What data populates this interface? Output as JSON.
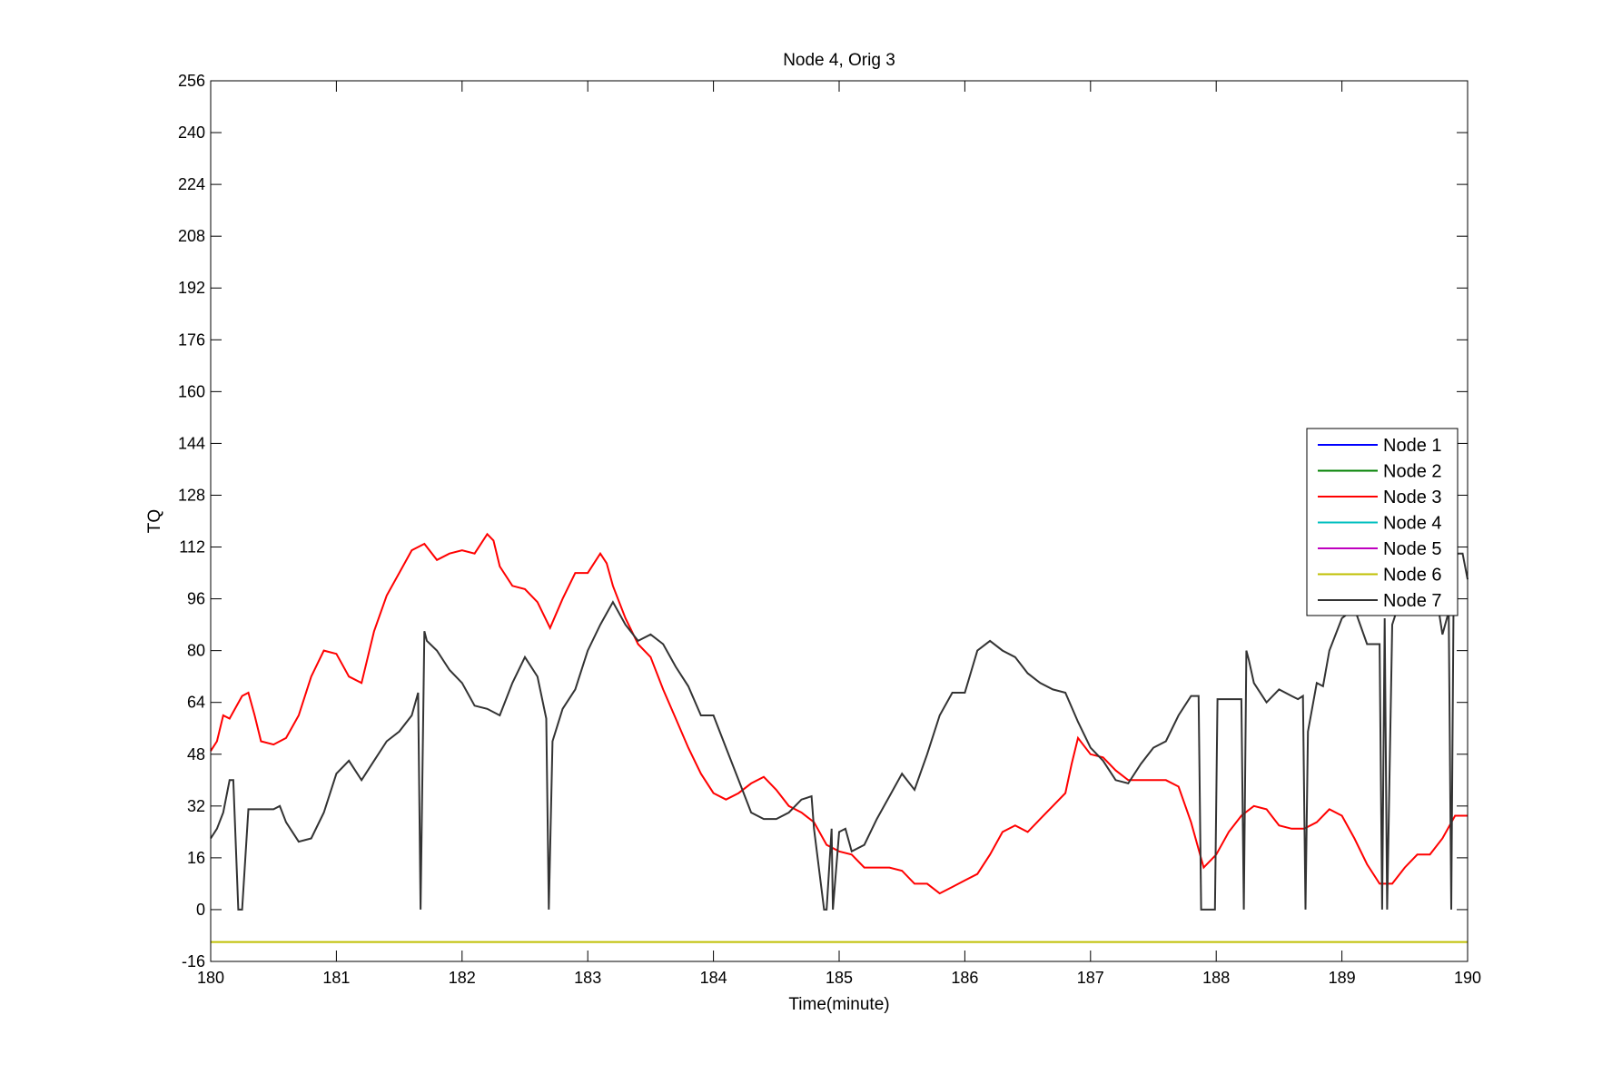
{
  "chart_data": {
    "type": "line",
    "title": "Node 4, Orig 3",
    "xlabel": "Time(minute)",
    "ylabel": "TQ",
    "xlim": [
      180,
      190
    ],
    "ylim": [
      -16,
      256
    ],
    "xticks": [
      180,
      181,
      182,
      183,
      184,
      185,
      186,
      187,
      188,
      189,
      190
    ],
    "yticks": [
      -16,
      0,
      16,
      32,
      48,
      64,
      80,
      96,
      112,
      128,
      144,
      160,
      176,
      192,
      208,
      224,
      240,
      256
    ],
    "grid": false,
    "legend_position": "right, vertically centered",
    "series": [
      {
        "name": "Node  1",
        "color": "#0000ff",
        "x": [],
        "y": []
      },
      {
        "name": "Node  2",
        "color": "#008000",
        "x": [],
        "y": []
      },
      {
        "name": "Node  3",
        "color": "#ff0000",
        "x": [
          180.0,
          180.05,
          180.1,
          180.15,
          180.25,
          180.3,
          180.35,
          180.4,
          180.5,
          180.6,
          180.7,
          180.8,
          180.9,
          181.0,
          181.1,
          181.2,
          181.3,
          181.4,
          181.5,
          181.6,
          181.7,
          181.8,
          181.9,
          182.0,
          182.1,
          182.2,
          182.25,
          182.3,
          182.4,
          182.5,
          182.6,
          182.7,
          182.8,
          182.9,
          183.0,
          183.1,
          183.15,
          183.2,
          183.3,
          183.4,
          183.5,
          183.6,
          183.7,
          183.8,
          183.9,
          184.0,
          184.1,
          184.2,
          184.3,
          184.4,
          184.5,
          184.6,
          184.7,
          184.8,
          184.9,
          185.0,
          185.1,
          185.2,
          185.3,
          185.4,
          185.5,
          185.6,
          185.7,
          185.8,
          185.9,
          186.0,
          186.1,
          186.2,
          186.3,
          186.4,
          186.5,
          186.6,
          186.7,
          186.8,
          186.85,
          186.9,
          187.0,
          187.1,
          187.2,
          187.3,
          187.4,
          187.5,
          187.6,
          187.7,
          187.8,
          187.9,
          188.0,
          188.1,
          188.2,
          188.3,
          188.4,
          188.5,
          188.6,
          188.7,
          188.8,
          188.9,
          189.0,
          189.1,
          189.2,
          189.3,
          189.4,
          189.5,
          189.6,
          189.7,
          189.8,
          189.9,
          190.0
        ],
        "y": [
          49,
          52,
          60,
          59,
          66,
          67,
          60,
          52,
          51,
          53,
          60,
          72,
          80,
          79,
          72,
          70,
          86,
          97,
          104,
          111,
          113,
          108,
          110,
          111,
          110,
          116,
          114,
          106,
          100,
          99,
          95,
          87,
          96,
          104,
          104,
          110,
          107,
          100,
          90,
          82,
          78,
          68,
          59,
          50,
          42,
          36,
          34,
          36,
          39,
          41,
          37,
          32,
          30,
          27,
          20,
          18,
          17,
          13,
          13,
          13,
          12,
          8,
          8,
          5,
          7,
          9,
          11,
          17,
          24,
          26,
          24,
          28,
          32,
          36,
          45,
          53,
          48,
          47,
          43,
          40,
          40,
          40,
          40,
          38,
          27,
          13,
          17,
          24,
          29,
          32,
          31,
          26,
          25,
          25,
          27,
          31,
          29,
          22,
          14,
          8,
          8,
          13,
          17,
          17,
          22,
          29,
          29
        ]
      },
      {
        "name": "Node  4",
        "color": "#00bfbf",
        "x": [],
        "y": []
      },
      {
        "name": "Node  5",
        "color": "#bf00bf",
        "x": [],
        "y": []
      },
      {
        "name": "Node  6",
        "color": "#bfbf00",
        "x": [
          180,
          190
        ],
        "y": [
          -10,
          -10
        ]
      },
      {
        "name": "Node  7",
        "color": "#333333",
        "x": [
          180.0,
          180.05,
          180.1,
          180.15,
          180.18,
          180.22,
          180.25,
          180.3,
          180.4,
          180.5,
          180.55,
          180.6,
          180.7,
          180.8,
          180.9,
          181.0,
          181.1,
          181.2,
          181.3,
          181.4,
          181.5,
          181.6,
          181.65,
          181.67,
          181.7,
          181.72,
          181.8,
          181.9,
          182.0,
          182.1,
          182.2,
          182.3,
          182.4,
          182.5,
          182.6,
          182.67,
          182.69,
          182.72,
          182.8,
          182.9,
          183.0,
          183.1,
          183.2,
          183.3,
          183.4,
          183.5,
          183.6,
          183.7,
          183.8,
          183.9,
          184.0,
          184.1,
          184.2,
          184.3,
          184.4,
          184.5,
          184.6,
          184.7,
          184.78,
          184.8,
          184.88,
          184.9,
          184.94,
          184.95,
          185.0,
          185.05,
          185.1,
          185.2,
          185.3,
          185.4,
          185.5,
          185.6,
          185.7,
          185.8,
          185.9,
          186.0,
          186.1,
          186.2,
          186.3,
          186.4,
          186.5,
          186.6,
          186.7,
          186.8,
          186.9,
          187.0,
          187.1,
          187.2,
          187.3,
          187.4,
          187.5,
          187.6,
          187.7,
          187.8,
          187.86,
          187.88,
          187.99,
          188.01,
          188.04,
          188.2,
          188.22,
          188.24,
          188.26,
          188.3,
          188.4,
          188.5,
          188.6,
          188.65,
          188.69,
          188.71,
          188.73,
          188.8,
          188.85,
          188.9,
          189.0,
          189.1,
          189.2,
          189.3,
          189.32,
          189.34,
          189.36,
          189.4,
          189.5,
          189.6,
          189.7,
          189.8,
          189.85,
          189.87,
          189.89,
          189.92,
          189.96,
          190.0
        ],
        "y": [
          22,
          25,
          30,
          40,
          40,
          0,
          0,
          31,
          31,
          31,
          32,
          27,
          21,
          22,
          30,
          42,
          46,
          40,
          46,
          52,
          55,
          60,
          67,
          0,
          86,
          83,
          80,
          74,
          70,
          63,
          62,
          60,
          70,
          78,
          72,
          59,
          0,
          52,
          62,
          68,
          80,
          88,
          95,
          88,
          83,
          85,
          82,
          75,
          69,
          60,
          60,
          50,
          40,
          30,
          28,
          28,
          30,
          34,
          35,
          25,
          0,
          0,
          25,
          0,
          24,
          25,
          18,
          20,
          28,
          35,
          42,
          37,
          48,
          60,
          67,
          67,
          80,
          83,
          80,
          78,
          73,
          70,
          68,
          67,
          58,
          50,
          46,
          40,
          39,
          45,
          50,
          52,
          60,
          66,
          66,
          0,
          0,
          65,
          65,
          65,
          0,
          80,
          77,
          70,
          64,
          68,
          66,
          65,
          66,
          0,
          55,
          70,
          69,
          80,
          90,
          93,
          82,
          82,
          0,
          90,
          0,
          88,
          100,
          92,
          110,
          85,
          92,
          0,
          105,
          110,
          110,
          102
        ]
      }
    ]
  }
}
